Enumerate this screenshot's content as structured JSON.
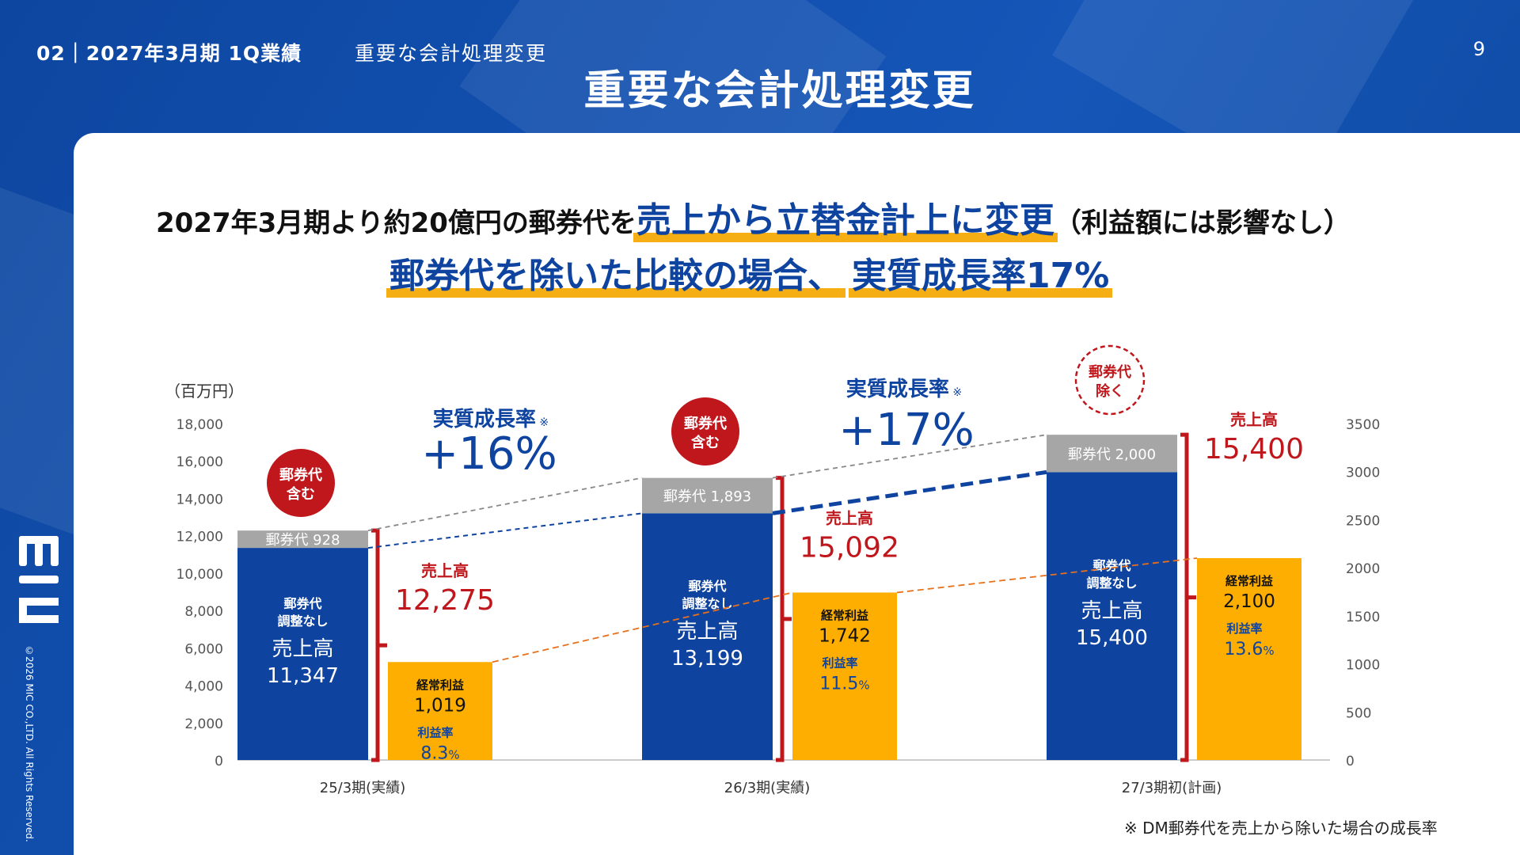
{
  "header": {
    "crumb": "02｜2027年3月期 1Q業績",
    "sub": "重要な会計処理変更",
    "page": "9",
    "title": "重要な会計処理変更"
  },
  "headline": {
    "line1_pre": "2027年3月期より約20億円の郵券代を",
    "line1_highlight": "売上から立替金計上に変更",
    "line1_post": "（利益額には影響なし）",
    "line2_part1": "郵券代を除いた比較の場合、",
    "line2_part2": "実質成長率17%"
  },
  "logo_text": "MIC",
  "copyright": "©2026 MIC CO.,LTD. All Rights Reserved.",
  "footnote": "※ DM郵券代を売上から除いた場合の成長率",
  "colors": {
    "navy": "#0e44a0",
    "gray": "#a6a6a6",
    "orange": "#fdae00",
    "red": "#c0171c",
    "highlight": "#f5ae14"
  },
  "chart_data": {
    "type": "bar",
    "unit_label": "（百万円）",
    "categories": [
      "25/3期(実績)",
      "26/3期(実績)",
      "27/3期初(計画)"
    ],
    "left_axis": {
      "ylim": [
        0,
        18000
      ],
      "ticks": [
        "0",
        "2,000",
        "4,000",
        "6,000",
        "8,000",
        "10,000",
        "12,000",
        "14,000",
        "16,000",
        "18,000"
      ]
    },
    "right_axis": {
      "ylim": [
        0,
        3500
      ],
      "ticks": [
        "0",
        "500",
        "1000",
        "1500",
        "2000",
        "2500",
        "3000",
        "3500"
      ]
    },
    "sales_excl_postage": [
      11347,
      13199,
      15400
    ],
    "postage": [
      928,
      1893,
      2000
    ],
    "sales_total": [
      12275,
      15092,
      15400
    ],
    "ordinary_profit": [
      1019,
      1742,
      2100
    ],
    "profit_margin": [
      "8.3",
      "11.5",
      "13.6"
    ],
    "labels": {
      "postage_prefix": "郵券代",
      "unadjusted_line1": "郵券代",
      "unadjusted_line2": "調整なし",
      "sales_inner": "売上高",
      "sales_bracket": "売上高",
      "profit": "経常利益",
      "margin": "利益率",
      "percent": "%",
      "sales_excl_postage_text": [
        "11,347",
        "13,199",
        "15,400"
      ],
      "sales_total_text": [
        "12,275",
        "15,092",
        "15,400"
      ],
      "profit_text": [
        "1,019",
        "1,742",
        "2,100"
      ],
      "postage_text": [
        "928",
        "1,893",
        "2,000"
      ]
    },
    "badges": [
      {
        "line1": "郵券代",
        "line2": "含む",
        "style": "solid"
      },
      {
        "line1": "郵券代",
        "line2": "含む",
        "style": "solid"
      },
      {
        "line1": "郵券代",
        "line2": "除く",
        "style": "dashed"
      }
    ],
    "growth": [
      {
        "label": "実質成長率",
        "mark": "※",
        "value": "+16%"
      },
      {
        "label": "実質成長率",
        "mark": "※",
        "value": "+17%"
      }
    ]
  }
}
